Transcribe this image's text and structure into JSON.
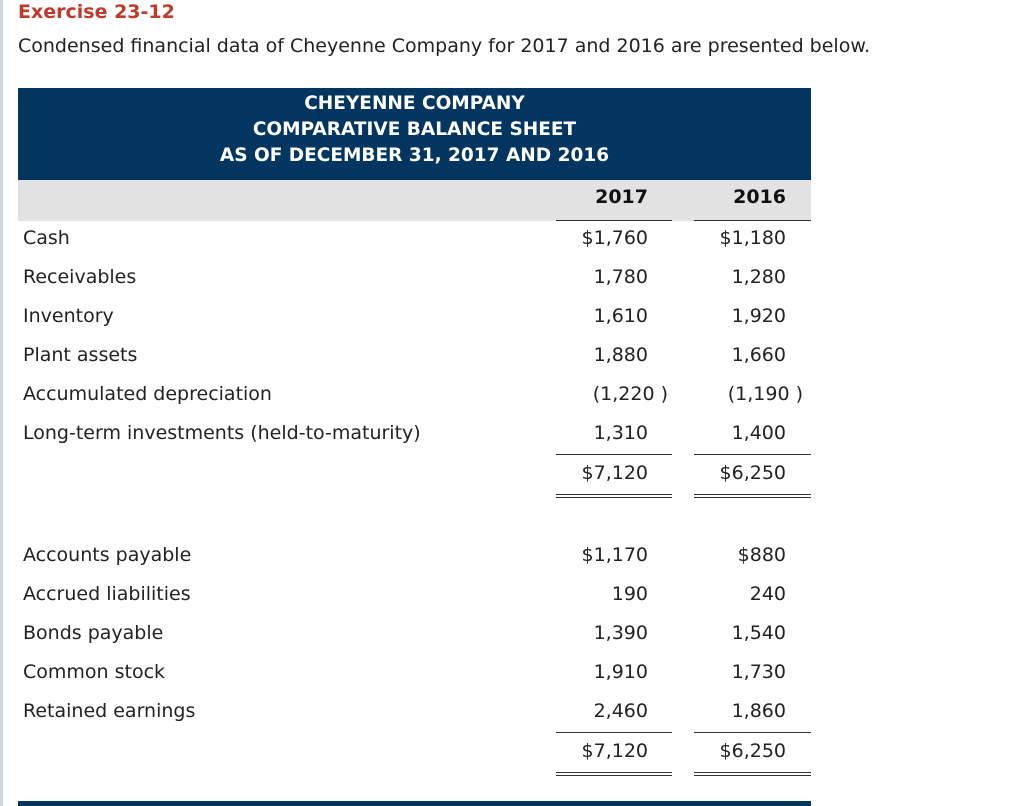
{
  "exercise_title": "Exercise 23-12",
  "intro_text": "Condensed financial data of Cheyenne Company for 2017 and 2016 are presented below.",
  "sheet": {
    "company": "CHEYENNE COMPANY",
    "statement": "COMPARATIVE BALANCE SHEET",
    "date_line": "AS OF DECEMBER 31, 2017 AND 2016",
    "col_2017": "2017",
    "col_2016": "2016",
    "assets": [
      {
        "label": "Cash",
        "v2017": "$1,760",
        "v2016": "$1,180"
      },
      {
        "label": "Receivables",
        "v2017": "1,780",
        "v2016": "1,280"
      },
      {
        "label": "Inventory",
        "v2017": "1,610",
        "v2016": "1,920"
      },
      {
        "label": "Plant assets",
        "v2017": "1,880",
        "v2016": "1,660"
      },
      {
        "label": "Accumulated depreciation",
        "v2017": "(1,220 )",
        "v2016": "(1,190 )"
      },
      {
        "label": "Long-term investments (held-to-maturity)",
        "v2017": "1,310",
        "v2016": "1,400"
      }
    ],
    "assets_total": {
      "v2017": "$7,120",
      "v2016": "$6,250"
    },
    "liabilities": [
      {
        "label": "Accounts payable",
        "v2017": "$1,170",
        "v2016": "$880"
      },
      {
        "label": "Accrued liabilities",
        "v2017": "190",
        "v2016": "240"
      },
      {
        "label": "Bonds payable",
        "v2017": "1,390",
        "v2016": "1,540"
      },
      {
        "label": "Common stock",
        "v2017": "1,910",
        "v2016": "1,730"
      },
      {
        "label": "Retained earnings",
        "v2017": "2,460",
        "v2016": "1,860"
      }
    ],
    "liabilities_total": {
      "v2017": "$7,120",
      "v2016": "$6,250"
    }
  }
}
